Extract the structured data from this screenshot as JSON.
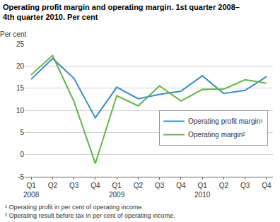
{
  "chart_data": {
    "type": "line",
    "title": "Operating profit margin and operating margin. 1st quarter 2008–\n4th quarter 2010. Per cent",
    "y_label": "Per cent",
    "categories": [
      "Q1\n2008",
      "Q2",
      "Q3",
      "Q4",
      "Q1\n2009",
      "Q2",
      "Q3",
      "Q4",
      "Q1\n2010",
      "Q2",
      "Q3",
      "Q4"
    ],
    "series": [
      {
        "name": "Operating profit margin¹",
        "color": "#3a8cc8",
        "values": [
          17.0,
          21.7,
          17.2,
          8.3,
          15.2,
          12.6,
          13.6,
          14.3,
          17.8,
          13.8,
          14.5,
          17.6
        ]
      },
      {
        "name": "Operating margin²",
        "color": "#64b446",
        "values": [
          18.0,
          22.4,
          12.0,
          -2.0,
          13.3,
          11.0,
          15.5,
          12.1,
          14.7,
          14.8,
          16.9,
          16.1
        ]
      }
    ],
    "ylim": [
      -5,
      25
    ],
    "yticks": [
      -5,
      0,
      5,
      10,
      15,
      20,
      25
    ],
    "grid": true,
    "legend": "lower right",
    "annotations": [
      "¹ Operating profit in per cent of operating income.",
      "² Operating result before tax in per cent of operating income."
    ]
  }
}
